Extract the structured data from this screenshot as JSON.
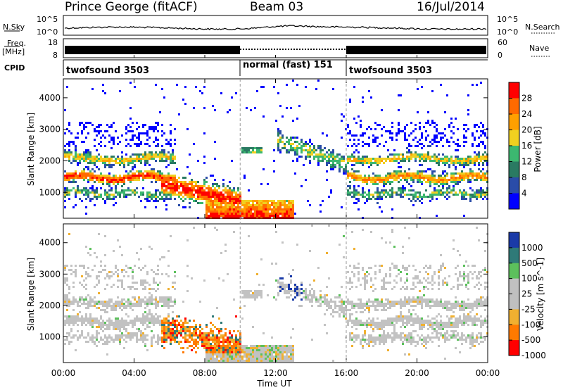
{
  "header": {
    "station": "Prince George (fitACF)",
    "beam": "Beam 03",
    "date": "16/Jul/2014"
  },
  "side_labels": {
    "nsky": "N.Sky",
    "nsearch": "N.Search",
    "freq": "Freq.",
    "freq_unit": "[MHz]",
    "nave": "Nave",
    "cpid": "CPID"
  },
  "noise_panel": {
    "tick_top": "10^5",
    "tick_bottom": "10^0"
  },
  "freq_panel": {
    "left_top": "18",
    "left_bottom": "8",
    "right_top": "60",
    "right_bottom": "0"
  },
  "cpid_panel": {
    "segments": [
      {
        "label": "twofsound 3503",
        "start_h": 0,
        "end_h": 10
      },
      {
        "label": "normal (fast) 151",
        "start_h": 10,
        "end_h": 16
      },
      {
        "label": "twofsound 3503",
        "start_h": 16,
        "end_h": 24
      }
    ]
  },
  "x_axis": {
    "label": "Time UT",
    "ticks": [
      "00:00",
      "04:00",
      "08:00",
      "12:00",
      "16:00",
      "20:00",
      "00:00"
    ]
  },
  "chart_data": [
    {
      "type": "heatmap",
      "name": "power",
      "ylabel": "Slant Range [km]",
      "yticks": [
        "4000",
        "3000",
        "2000",
        "1000"
      ],
      "ylim": [
        180,
        4600
      ],
      "xlim_hours": [
        0,
        24
      ],
      "colorbar_label": "Power [dB]",
      "colorbar_ticks": [
        "28",
        "24",
        "20",
        "16",
        "12",
        "8",
        "4"
      ],
      "colors": [
        "#ff0000",
        "#ff6a00",
        "#ffa000",
        "#f0d020",
        "#3cb870",
        "#2a7a62",
        "#2a4ca8",
        "#0000ff"
      ]
    },
    {
      "type": "heatmap",
      "name": "velocity",
      "ylabel": "Slant Range [km]",
      "yticks": [
        "4000",
        "3000",
        "2000",
        "1000"
      ],
      "ylim": [
        180,
        4600
      ],
      "xlim_hours": [
        0,
        24
      ],
      "colorbar_label": "Velocity [m s^-1]",
      "colorbar_ticks": [
        "1000",
        "500",
        "100",
        "25",
        "-25",
        "-100",
        "-500",
        "-1000"
      ],
      "colors": [
        "#1a3aa8",
        "#2f7a78",
        "#5cc05c",
        "#c0c0c0",
        "#c0c0c0",
        "#f0b030",
        "#ff7a00",
        "#ff0000"
      ]
    }
  ]
}
